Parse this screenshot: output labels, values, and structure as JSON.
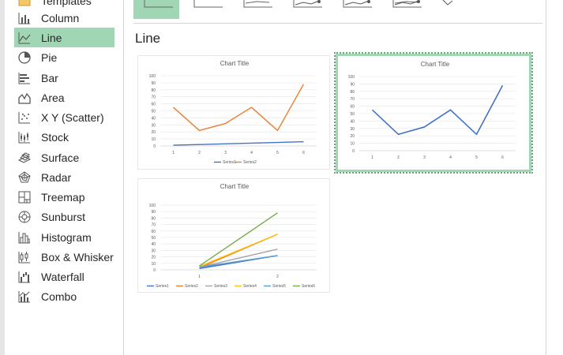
{
  "sidebar": {
    "items": [
      {
        "label": "Templates",
        "icon": "folder-icon"
      },
      {
        "label": "Column",
        "icon": "column-chart-icon"
      },
      {
        "label": "Line",
        "icon": "line-chart-icon"
      },
      {
        "label": "Pie",
        "icon": "pie-chart-icon"
      },
      {
        "label": "Bar",
        "icon": "bar-chart-icon"
      },
      {
        "label": "Area",
        "icon": "area-chart-icon"
      },
      {
        "label": "X Y (Scatter)",
        "icon": "scatter-chart-icon"
      },
      {
        "label": "Stock",
        "icon": "stock-chart-icon"
      },
      {
        "label": "Surface",
        "icon": "surface-chart-icon"
      },
      {
        "label": "Radar",
        "icon": "radar-chart-icon"
      },
      {
        "label": "Treemap",
        "icon": "treemap-chart-icon"
      },
      {
        "label": "Sunburst",
        "icon": "sunburst-chart-icon"
      },
      {
        "label": "Histogram",
        "icon": "histogram-chart-icon"
      },
      {
        "label": "Box & Whisker",
        "icon": "box-whisker-chart-icon"
      },
      {
        "label": "Waterfall",
        "icon": "waterfall-chart-icon"
      },
      {
        "label": "Combo",
        "icon": "combo-chart-icon"
      }
    ],
    "selected": "Line"
  },
  "main": {
    "section_title": "Line",
    "subtypes": [
      "line",
      "stacked-line",
      "100-stacked-line",
      "line-with-markers",
      "stacked-line-with-markers",
      "100-stacked-line-with-markers",
      "3d-line"
    ]
  },
  "colors": {
    "selection": "#a0d6b4",
    "series1": "#4472c4",
    "series2": "#ed7d31",
    "series3": "#a5a5a5",
    "series4": "#ffc000",
    "series5": "#5b9bd5",
    "series6": "#70ad47"
  },
  "chart_data": [
    {
      "type": "line",
      "title": "Chart Title",
      "x": [
        "1",
        "2",
        "3",
        "4",
        "5",
        "6"
      ],
      "ylim": [
        0,
        100
      ],
      "yticks": [
        "0",
        "10",
        "20",
        "30",
        "40",
        "50",
        "60",
        "70",
        "80",
        "90",
        "100"
      ],
      "series": [
        {
          "name": "Series1",
          "values": [
            1,
            2,
            3,
            4,
            5,
            6
          ]
        },
        {
          "name": "Series2",
          "values": [
            55,
            22,
            32,
            55,
            22,
            88
          ]
        }
      ],
      "legend": "bottom"
    },
    {
      "type": "line",
      "title": "Chart Title",
      "x": [
        "1",
        "2",
        "3",
        "4",
        "5",
        "6"
      ],
      "ylim": [
        0,
        100
      ],
      "yticks": [
        "0",
        "10",
        "20",
        "30",
        "40",
        "50",
        "60",
        "70",
        "80",
        "90",
        "100"
      ],
      "series": [
        {
          "values": [
            55,
            22,
            32,
            55,
            22,
            88
          ]
        }
      ]
    },
    {
      "type": "line",
      "title": "Chart Title",
      "x": [
        "1",
        "2"
      ],
      "ylim": [
        0,
        100
      ],
      "yticks": [
        "0",
        "10",
        "20",
        "30",
        "40",
        "50",
        "60",
        "70",
        "80",
        "90",
        "100"
      ],
      "series": [
        {
          "name": "Series1",
          "values": [
            2,
            22
          ]
        },
        {
          "name": "Series2",
          "values": [
            3,
            55
          ]
        },
        {
          "name": "Series3",
          "values": [
            4,
            32
          ]
        },
        {
          "name": "Series4",
          "values": [
            5,
            55
          ]
        },
        {
          "name": "Series5",
          "values": [
            4,
            22
          ]
        },
        {
          "name": "Series6",
          "values": [
            6,
            88
          ]
        }
      ],
      "legend": "bottom"
    }
  ]
}
